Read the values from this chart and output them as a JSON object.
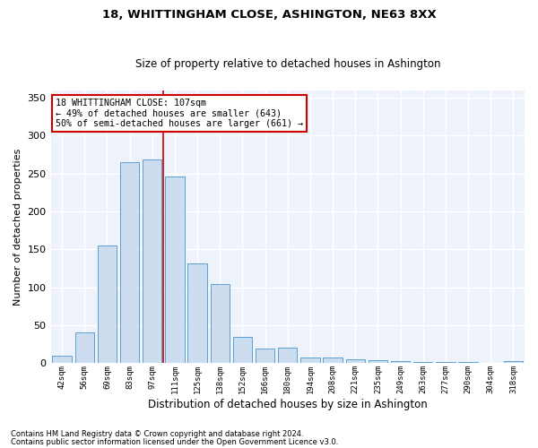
{
  "title": "18, WHITTINGHAM CLOSE, ASHINGTON, NE63 8XX",
  "subtitle": "Size of property relative to detached houses in Ashington",
  "xlabel": "Distribution of detached houses by size in Ashington",
  "ylabel": "Number of detached properties",
  "categories": [
    "42sqm",
    "56sqm",
    "69sqm",
    "83sqm",
    "97sqm",
    "111sqm",
    "125sqm",
    "138sqm",
    "152sqm",
    "166sqm",
    "180sqm",
    "194sqm",
    "208sqm",
    "221sqm",
    "235sqm",
    "249sqm",
    "263sqm",
    "277sqm",
    "290sqm",
    "304sqm",
    "318sqm"
  ],
  "values": [
    10,
    40,
    155,
    265,
    268,
    246,
    131,
    104,
    35,
    19,
    20,
    8,
    7,
    5,
    4,
    3,
    2,
    2,
    1,
    0,
    3
  ],
  "bar_color": "#ccddf0",
  "bar_edge_color": "#5a9fd4",
  "background_color": "#eef2fa",
  "grid_color": "#ffffff",
  "vline_x_index": 4,
  "vline_color": "#cc0000",
  "annotation_text": "18 WHITTINGHAM CLOSE: 107sqm\n← 49% of detached houses are smaller (643)\n50% of semi-detached houses are larger (661) →",
  "annotation_box_color": "#ffffff",
  "annotation_box_edge_color": "#cc0000",
  "ylim": [
    0,
    360
  ],
  "yticks": [
    0,
    50,
    100,
    150,
    200,
    250,
    300,
    350
  ],
  "footnote1": "Contains HM Land Registry data © Crown copyright and database right 2024.",
  "footnote2": "Contains public sector information licensed under the Open Government Licence v3.0."
}
